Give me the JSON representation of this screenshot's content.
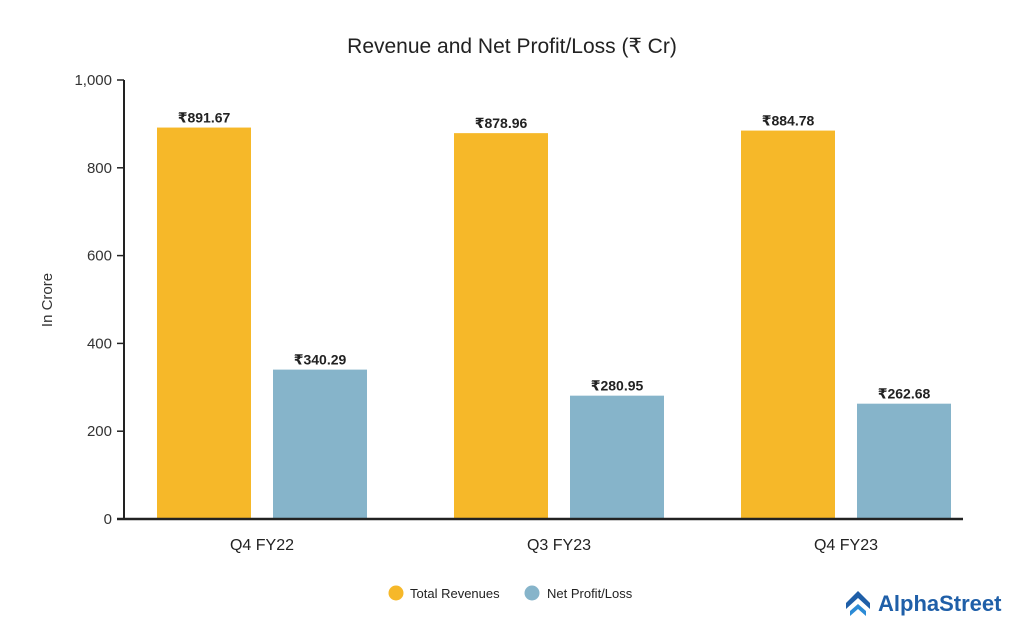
{
  "chart_data": {
    "type": "bar",
    "title": "Revenue and Net Profit/Loss (₹ Cr)",
    "xlabel": "",
    "ylabel": "In Crore",
    "ylim": [
      0,
      1000
    ],
    "yticks": [
      0,
      200,
      400,
      600,
      800,
      1000
    ],
    "ytick_labels": [
      "0",
      "200",
      "400",
      "600",
      "800",
      "1,000"
    ],
    "categories": [
      "Q4 FY22",
      "Q3 FY23",
      "Q4 FY23"
    ],
    "series": [
      {
        "name": "Total Revenues",
        "color": "#F6B829",
        "values": [
          891.67,
          878.96,
          884.78
        ],
        "labels": [
          "₹891.67",
          "₹878.96",
          "₹884.78"
        ]
      },
      {
        "name": "Net Profit/Loss",
        "color": "#86B4CA",
        "values": [
          340.29,
          280.95,
          262.68
        ],
        "labels": [
          "₹340.29",
          "₹280.95",
          "₹262.68"
        ]
      }
    ],
    "grid": false,
    "legend_position": "bottom-center"
  },
  "brand": {
    "name": "AlphaStreet",
    "logo_icon": "alphastreet-logo-icon",
    "color": "#1F5FA8"
  }
}
